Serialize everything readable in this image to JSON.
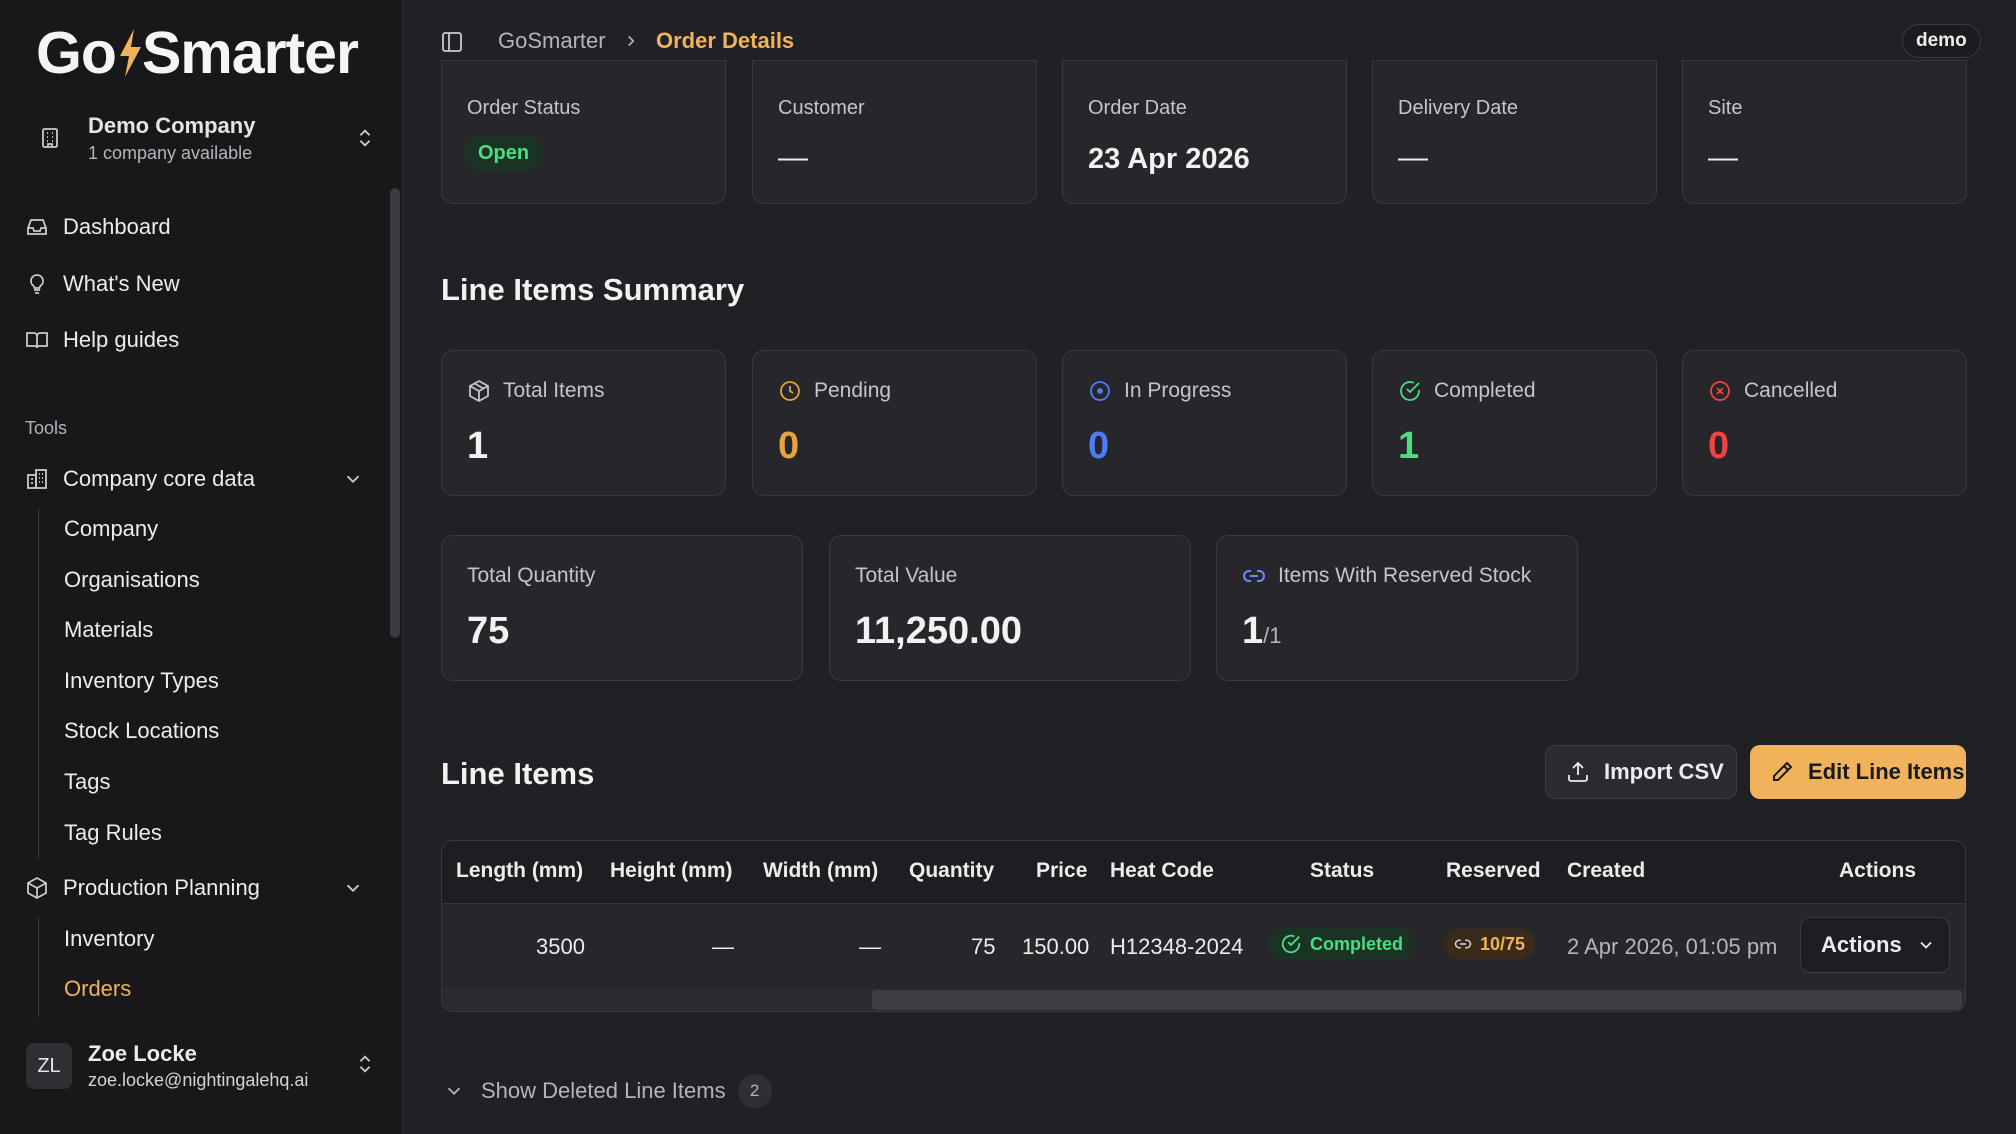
{
  "app": {
    "logo_text_left": "Go",
    "logo_text_right": "Smarter",
    "accent_color": "#f0b35c"
  },
  "company": {
    "name": "Demo Company",
    "sub": "1 company available"
  },
  "nav": {
    "main": [
      {
        "label": "Dashboard",
        "icon": "inbox-icon"
      },
      {
        "label": "What's New",
        "icon": "lightbulb-icon"
      },
      {
        "label": "Help guides",
        "icon": "book-icon"
      }
    ],
    "tools_label": "Tools",
    "core_data": {
      "label": "Company core data",
      "items": [
        "Company",
        "Organisations",
        "Materials",
        "Inventory Types",
        "Stock Locations",
        "Tags",
        "Tag Rules"
      ]
    },
    "production": {
      "label": "Production Planning",
      "items": [
        "Inventory",
        "Orders"
      ]
    }
  },
  "user": {
    "initials": "ZL",
    "name": "Zoe Locke",
    "email": "zoe.locke@nightingalehq.ai"
  },
  "breadcrumb": {
    "root": "GoSmarter",
    "current": "Order Details"
  },
  "env_badge": "demo",
  "order_info": {
    "status_label": "Order Status",
    "status_value": "Open",
    "customer_label": "Customer",
    "customer_value": "—",
    "order_date_label": "Order Date",
    "order_date_value": "23 Apr 2026",
    "delivery_label": "Delivery Date",
    "delivery_value": "—",
    "site_label": "Site",
    "site_value": "—"
  },
  "summary": {
    "title": "Line Items Summary",
    "total_items": {
      "label": "Total Items",
      "value": "1"
    },
    "pending": {
      "label": "Pending",
      "value": "0"
    },
    "in_progress": {
      "label": "In Progress",
      "value": "0"
    },
    "completed": {
      "label": "Completed",
      "value": "1"
    },
    "cancelled": {
      "label": "Cancelled",
      "value": "0"
    },
    "total_quantity": {
      "label": "Total Quantity",
      "value": "75"
    },
    "total_value": {
      "label": "Total Value",
      "value": "11,250.00"
    },
    "reserved_stock": {
      "label": "Items With Reserved Stock",
      "value": "1",
      "of": "/1"
    },
    "colors": {
      "pending": "#e6a23c",
      "in_progress": "#4f7df5",
      "completed": "#4ade80",
      "cancelled": "#ef4444"
    }
  },
  "line_items": {
    "title": "Line Items",
    "import_label": "Import CSV",
    "edit_label": "Edit Line Items",
    "columns": [
      "Length (mm)",
      "Height (mm)",
      "Width (mm)",
      "Quantity",
      "Price",
      "Heat Code",
      "Status",
      "Reserved",
      "Created",
      "Actions"
    ],
    "rows": [
      {
        "length": "3500",
        "height": "—",
        "width": "—",
        "quantity": "75",
        "price": "150.00",
        "heat_code": "H12348-2024",
        "status": "Completed",
        "reserved": "10/75",
        "created": "2 Apr 2026, 01:05 pm",
        "actions": "Actions"
      }
    ],
    "show_deleted_label": "Show Deleted Line Items",
    "deleted_count": "2"
  }
}
